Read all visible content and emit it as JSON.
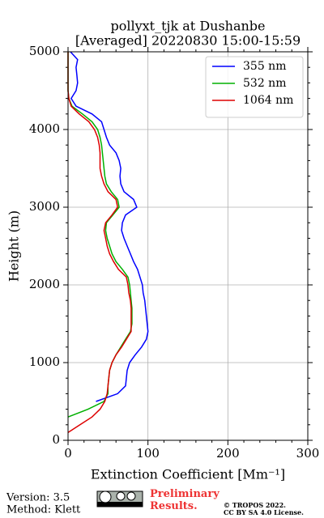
{
  "chart_data": {
    "type": "line",
    "title": "pollyxt_tjk at Dushanbe",
    "subtitle": "[Averaged] 20220830 15:00-15:59",
    "x_label": "Extinction Coefficient [Mm⁻¹]",
    "y_label": "Height (m)",
    "y": [
      0,
      100,
      200,
      300,
      400,
      500,
      600,
      700,
      800,
      900,
      1000,
      1100,
      1200,
      1300,
      1400,
      1500,
      1600,
      1700,
      1800,
      1900,
      2000,
      2100,
      2200,
      2300,
      2400,
      2500,
      2600,
      2700,
      2800,
      2900,
      3000,
      3100,
      3200,
      3300,
      3400,
      3500,
      3600,
      3700,
      3800,
      3900,
      4000,
      4100,
      4200,
      4300,
      4400,
      4500,
      4600,
      4700,
      4800,
      4900,
      5000
    ],
    "series": [
      {
        "name": "355 nm",
        "color": "#0000ff",
        "values": [
          null,
          null,
          null,
          null,
          null,
          35,
          62,
          72,
          73,
          74,
          77,
          84,
          92,
          98,
          100,
          99,
          98,
          97,
          96,
          94,
          93,
          90,
          87,
          82,
          78,
          74,
          70,
          67,
          68,
          72,
          86,
          82,
          70,
          66,
          65,
          66,
          64,
          60,
          52,
          48,
          45,
          42,
          30,
          10,
          4,
          10,
          12,
          11,
          10,
          12,
          3
        ]
      },
      {
        "name": "532 nm",
        "color": "#00b000",
        "values": [
          null,
          null,
          null,
          0,
          25,
          45,
          50,
          50,
          51,
          52,
          55,
          60,
          66,
          72,
          78,
          80,
          80,
          80,
          79,
          78,
          77,
          75,
          68,
          60,
          55,
          52,
          49,
          47,
          48,
          56,
          64,
          62,
          54,
          48,
          46,
          45,
          44,
          43,
          42,
          40,
          37,
          30,
          18,
          5,
          1,
          0,
          0,
          0,
          0,
          0,
          0
        ]
      },
      {
        "name": "1064 nm",
        "color": "#dd0000",
        "values": [
          null,
          0,
          15,
          30,
          40,
          46,
          49,
          50,
          51,
          52,
          55,
          60,
          67,
          73,
          79,
          79,
          79,
          79,
          78,
          76,
          75,
          73,
          63,
          57,
          52,
          49,
          47,
          45,
          47,
          55,
          62,
          60,
          50,
          45,
          42,
          40,
          40,
          40,
          39,
          37,
          33,
          26,
          14,
          4,
          1,
          0,
          0,
          0,
          0,
          0,
          0
        ]
      }
    ],
    "xlim": [
      0,
      300
    ],
    "xticks": [
      0,
      100,
      200,
      300
    ],
    "ylim": [
      0,
      5000
    ],
    "yticks": [
      0,
      1000,
      2000,
      3000,
      4000,
      5000
    ],
    "grid": true,
    "legend": "upper right",
    "footer": {
      "version": "Version: 3.5",
      "method": "Method: Klett",
      "preliminary": "Preliminary Results.",
      "copyright": "© TROPOS 2022.",
      "license": "CC BY SA 4.0 License."
    }
  }
}
